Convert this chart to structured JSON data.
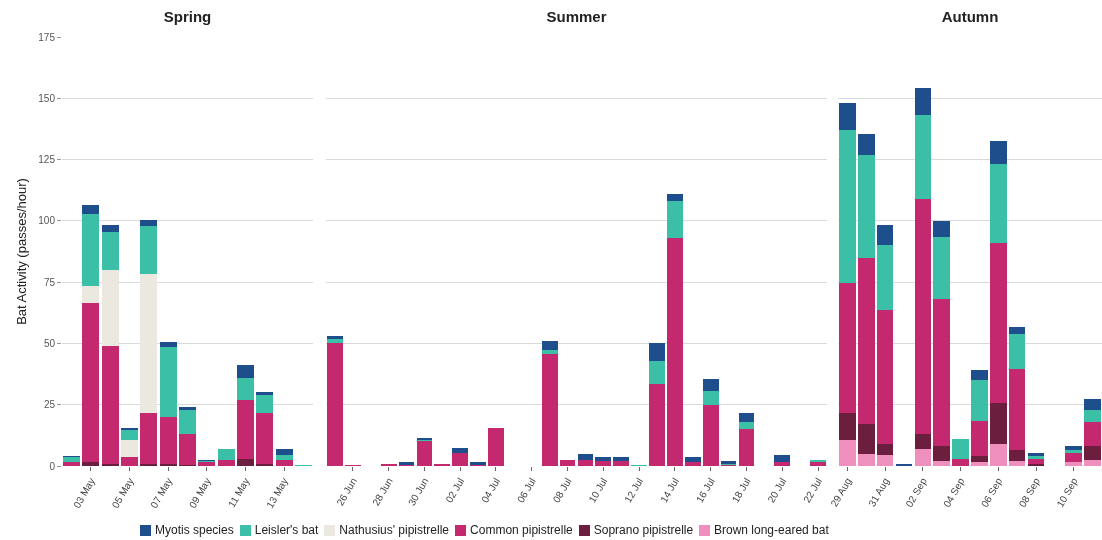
{
  "chart_data": [
    {
      "type": "bar",
      "title": "Spring",
      "ylabel": "Bat Activity (passes/hour)",
      "stacked": true,
      "grid": "y",
      "legend": "bottom",
      "ylim": [
        0,
        175
      ],
      "yticks": [
        0,
        25,
        50,
        75,
        100,
        125,
        150,
        175
      ],
      "categories": [
        null,
        "03 May",
        null,
        "05 May",
        null,
        "07 May",
        null,
        "09 May",
        null,
        "11 May",
        null,
        "13 May",
        null
      ],
      "series": [
        {
          "name": "Soprano pipistrelle",
          "color": "#6b1e3e",
          "values": [
            0,
            1.5,
            0.8,
            0,
            1,
            1,
            0.5,
            0,
            0,
            3,
            1,
            0,
            0
          ]
        },
        {
          "name": "Common pipistrelle",
          "color": "#c4286f",
          "values": [
            1.5,
            65,
            48,
            3.5,
            20.5,
            19,
            12.5,
            1.5,
            2.5,
            24,
            20.5,
            2.5,
            0
          ]
        },
        {
          "name": "Nathusius' pipistrelle",
          "color": "#ebe8df",
          "values": [
            0,
            7,
            31,
            7,
            57,
            0,
            0,
            0,
            0,
            0,
            0,
            0,
            0
          ]
        },
        {
          "name": "Leisler's bat",
          "color": "#3bbfa7",
          "values": [
            2,
            29.5,
            15.5,
            4,
            19.5,
            28.5,
            10,
            0.5,
            4.5,
            9,
            7.5,
            2,
            0.5
          ]
        },
        {
          "name": "Myotis species",
          "color": "#1f4e8c",
          "values": [
            0.5,
            3.5,
            3,
            1,
            2.5,
            2,
            1,
            0.5,
            0,
            5,
            1,
            2.5,
            0
          ]
        }
      ]
    },
    {
      "type": "bar",
      "title": "Summer",
      "stacked": true,
      "grid": "y",
      "tick_labels": "x",
      "ylim": [
        0,
        175
      ],
      "yticks": [
        0,
        25,
        50,
        75,
        100,
        125,
        150,
        175
      ],
      "categories": [
        null,
        "26 Jun",
        null,
        "28 Jun",
        null,
        "30 Jun",
        null,
        "02 Jul",
        null,
        "04 Jul",
        null,
        "06 Jul",
        null,
        "08 Jul",
        null,
        "10 Jul",
        null,
        "12 Jul",
        null,
        "14 Jul",
        null,
        "16 Jul",
        null,
        "18 Jul",
        null,
        "20 Jul",
        null,
        "22 Jul"
      ],
      "series": [
        {
          "color": "#c4286f",
          "values": [
            50,
            0.5,
            0,
            1,
            0.5,
            10,
            1,
            5.5,
            0.5,
            15.5,
            0,
            0,
            45.5,
            2.5,
            2.5,
            2,
            2,
            0,
            33.5,
            93,
            1.5,
            25,
            0.5,
            15,
            0,
            1.5,
            0,
            1.5
          ]
        },
        {
          "color": "#3bbfa7",
          "values": [
            2,
            0,
            0,
            0,
            0,
            0.5,
            0,
            0,
            0,
            0,
            0,
            0,
            2,
            0,
            0,
            0,
            0,
            0.5,
            9.5,
            15,
            0,
            5.5,
            0.5,
            3,
            0,
            0,
            0,
            1
          ]
        },
        {
          "color": "#1f4e8c",
          "values": [
            1,
            0,
            0,
            0,
            1,
            1,
            0,
            2,
            1,
            0,
            0,
            0,
            3.5,
            0,
            2.5,
            1.5,
            1.5,
            0,
            7,
            3,
            2,
            5,
            1,
            3.5,
            0,
            3,
            0,
            0
          ]
        }
      ]
    },
    {
      "type": "bar",
      "title": "Autumn",
      "stacked": true,
      "grid": "y",
      "tick_labels": "x",
      "legend": "bottom",
      "ylim": [
        0,
        175
      ],
      "yticks": [
        0,
        25,
        50,
        75,
        100,
        125,
        150,
        175
      ],
      "categories": [
        "29 Aug",
        null,
        "31 Aug",
        null,
        "02 Sep",
        null,
        "04 Sep",
        null,
        "06 Sep",
        null,
        "08 Sep",
        null,
        "10 Sep",
        null
      ],
      "series": [
        {
          "name": "Brown long-eared bat",
          "color": "#ef8fbd",
          "values": [
            10.5,
            5,
            4.5,
            0,
            7,
            2,
            0,
            1.5,
            9,
            2,
            0,
            0,
            1.5,
            2.5
          ]
        },
        {
          "color": "#6b1e3e",
          "values": [
            11,
            12,
            4.5,
            0,
            6,
            6,
            0,
            2.5,
            16.5,
            4.5,
            1,
            0,
            0,
            5.5
          ]
        },
        {
          "color": "#c4286f",
          "values": [
            53,
            68,
            54.5,
            0,
            96,
            60,
            3,
            14.5,
            65.5,
            33,
            2,
            0,
            4,
            10
          ]
        },
        {
          "color": "#3bbfa7",
          "values": [
            62.5,
            42,
            26.5,
            0,
            34,
            25.5,
            8,
            16.5,
            32,
            14.5,
            1,
            0,
            1,
            5
          ]
        },
        {
          "color": "#1f4e8c",
          "values": [
            11,
            8.5,
            8.5,
            1,
            11,
            6.5,
            0,
            4,
            9.5,
            2.5,
            1.5,
            0,
            1.5,
            4.5
          ]
        }
      ]
    }
  ]
}
